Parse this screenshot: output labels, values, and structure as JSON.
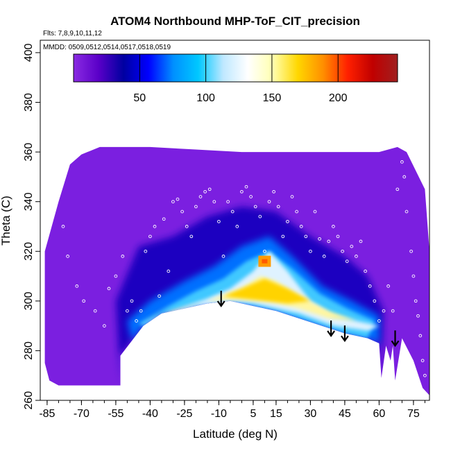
{
  "chart_data": {
    "type": "heatmap",
    "title": "ATOM4 Northbound MHP-ToF_CIT_precision",
    "flights_note": "Flts: 7,8,9,10,11,12",
    "dates_note": "MMDD: 0509,0512,0514,0517,0518,0519",
    "xlabel": "Latitude (deg N)",
    "ylabel": "Theta (C)",
    "xlim": [
      -88,
      82
    ],
    "ylim": [
      260,
      405
    ],
    "x_ticks": [
      -85,
      -70,
      -55,
      -40,
      -25,
      -10,
      5,
      15,
      30,
      45,
      60,
      75
    ],
    "y_ticks": [
      260,
      280,
      300,
      320,
      340,
      360,
      380,
      400
    ],
    "colorbar": {
      "range": [
        0,
        245
      ],
      "ticks": [
        50,
        100,
        150,
        200
      ],
      "colors": [
        "#8a2be2",
        "#5a00c8",
        "#0000a0",
        "#0000ff",
        "#0090ff",
        "#00c8ff",
        "#bfe8ff",
        "#ffffff",
        "#ffffb0",
        "#ffd700",
        "#ff9000",
        "#ff2000",
        "#c00000",
        "#a02020"
      ]
    },
    "field_top_boundary": [
      [
        -86,
        320
      ],
      [
        -80,
        340
      ],
      [
        -75,
        355
      ],
      [
        -70,
        359
      ],
      [
        -62,
        362
      ],
      [
        -55,
        362
      ],
      [
        -40,
        362
      ],
      [
        -20,
        361
      ],
      [
        0,
        360
      ],
      [
        20,
        360
      ],
      [
        40,
        360
      ],
      [
        60,
        360
      ],
      [
        68,
        362
      ],
      [
        72,
        360
      ],
      [
        80,
        345
      ],
      [
        82,
        320
      ]
    ],
    "field_bottom_boundary": [
      [
        -86,
        275
      ],
      [
        -84,
        268
      ],
      [
        -80,
        266
      ],
      [
        -70,
        266
      ],
      [
        -55,
        266
      ],
      [
        -53,
        266
      ],
      [
        -53,
        278
      ],
      [
        -48,
        284
      ],
      [
        -43,
        290
      ],
      [
        -35,
        295
      ],
      [
        -25,
        297
      ],
      [
        -15,
        299
      ],
      [
        -5,
        300
      ],
      [
        5,
        298
      ],
      [
        15,
        296
      ],
      [
        25,
        293
      ],
      [
        35,
        290
      ],
      [
        45,
        287
      ],
      [
        55,
        285
      ],
      [
        60,
        283
      ],
      [
        61,
        269
      ],
      [
        63,
        282
      ],
      [
        65,
        276
      ],
      [
        66,
        282
      ],
      [
        67,
        268
      ],
      [
        70,
        285
      ],
      [
        75,
        276
      ],
      [
        79,
        265
      ],
      [
        82,
        262
      ]
    ],
    "high_core": [
      [
        -45,
        290
      ],
      [
        -30,
        296
      ],
      [
        -15,
        301
      ],
      [
        -5,
        305
      ],
      [
        5,
        312
      ],
      [
        12,
        320
      ],
      [
        20,
        312
      ],
      [
        30,
        300
      ],
      [
        40,
        294
      ],
      [
        50,
        292
      ],
      [
        60,
        290
      ],
      [
        55,
        288
      ],
      [
        40,
        290
      ],
      [
        25,
        295
      ],
      [
        15,
        297
      ],
      [
        5,
        299
      ],
      [
        -5,
        300
      ],
      [
        -20,
        298
      ],
      [
        -35,
        293
      ]
    ],
    "mid_core": [
      [
        -40,
        292
      ],
      [
        -25,
        297
      ],
      [
        -12,
        301
      ],
      [
        0,
        305
      ],
      [
        8,
        310
      ],
      [
        15,
        308
      ],
      [
        25,
        302
      ],
      [
        38,
        296
      ],
      [
        50,
        292
      ],
      [
        38,
        293
      ],
      [
        25,
        297
      ],
      [
        12,
        300
      ],
      [
        0,
        301
      ],
      [
        -15,
        300
      ],
      [
        -30,
        296
      ]
    ],
    "peak_core": [
      [
        -8,
        302
      ],
      [
        0,
        305
      ],
      [
        10,
        309
      ],
      [
        20,
        305
      ],
      [
        30,
        300
      ],
      [
        20,
        299
      ],
      [
        10,
        300
      ],
      [
        0,
        301
      ]
    ],
    "hot_spot": {
      "lat": 10,
      "theta": 316,
      "value": 180
    },
    "arrows": [
      {
        "lat": -9,
        "theta": 298
      },
      {
        "lat": 39,
        "theta": 286
      },
      {
        "lat": 45,
        "theta": 284
      },
      {
        "lat": 67,
        "theta": 282
      }
    ],
    "observations": [
      [
        -78,
        330
      ],
      [
        -76,
        318
      ],
      [
        -72,
        306
      ],
      [
        -69,
        300
      ],
      [
        -64,
        296
      ],
      [
        -60,
        290
      ],
      [
        -58,
        305
      ],
      [
        -55,
        310
      ],
      [
        -52,
        318
      ],
      [
        -50,
        296
      ],
      [
        -48,
        300
      ],
      [
        -46,
        292
      ],
      [
        -44,
        296
      ],
      [
        -42,
        320
      ],
      [
        -40,
        326
      ],
      [
        -38,
        330
      ],
      [
        -36,
        302
      ],
      [
        -34,
        333
      ],
      [
        -32,
        312
      ],
      [
        -30,
        340
      ],
      [
        -28,
        341
      ],
      [
        -26,
        336
      ],
      [
        -24,
        330
      ],
      [
        -22,
        326
      ],
      [
        -20,
        338
      ],
      [
        -18,
        342
      ],
      [
        -16,
        344
      ],
      [
        -14,
        345
      ],
      [
        -12,
        340
      ],
      [
        -10,
        332
      ],
      [
        -8,
        318
      ],
      [
        -6,
        340
      ],
      [
        -4,
        336
      ],
      [
        -2,
        330
      ],
      [
        0,
        344
      ],
      [
        2,
        346
      ],
      [
        4,
        342
      ],
      [
        6,
        338
      ],
      [
        8,
        334
      ],
      [
        10,
        320
      ],
      [
        12,
        340
      ],
      [
        14,
        344
      ],
      [
        16,
        338
      ],
      [
        18,
        326
      ],
      [
        20,
        332
      ],
      [
        22,
        342
      ],
      [
        24,
        336
      ],
      [
        26,
        330
      ],
      [
        28,
        326
      ],
      [
        30,
        320
      ],
      [
        32,
        336
      ],
      [
        34,
        325
      ],
      [
        36,
        318
      ],
      [
        38,
        324
      ],
      [
        40,
        330
      ],
      [
        42,
        326
      ],
      [
        44,
        320
      ],
      [
        46,
        316
      ],
      [
        48,
        322
      ],
      [
        50,
        318
      ],
      [
        52,
        324
      ],
      [
        54,
        312
      ],
      [
        56,
        306
      ],
      [
        58,
        300
      ],
      [
        60,
        292
      ],
      [
        62,
        296
      ],
      [
        64,
        306
      ],
      [
        66,
        296
      ],
      [
        68,
        345
      ],
      [
        70,
        356
      ],
      [
        71,
        350
      ],
      [
        72,
        336
      ],
      [
        74,
        320
      ],
      [
        75,
        310
      ],
      [
        76,
        300
      ],
      [
        77,
        294
      ],
      [
        78,
        286
      ],
      [
        79,
        276
      ],
      [
        80,
        270
      ]
    ]
  }
}
